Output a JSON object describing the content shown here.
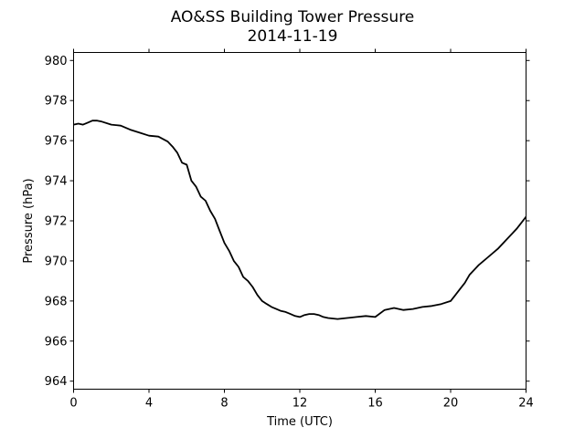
{
  "chart_data": {
    "type": "line",
    "title": "AO&SS Building Tower Pressure",
    "subtitle": "2014-11-19",
    "xlabel": "Time (UTC)",
    "ylabel": "Pressure (hPa)",
    "xlim": [
      0,
      24
    ],
    "ylim": [
      963.6,
      980.4
    ],
    "xticks": [
      0,
      4,
      8,
      12,
      16,
      20,
      24
    ],
    "yticks": [
      964,
      966,
      968,
      970,
      972,
      974,
      976,
      978,
      980
    ],
    "grid": false,
    "series": [
      {
        "color": "#000000",
        "x": [
          0,
          0.25,
          0.5,
          0.75,
          1.0,
          1.25,
          1.5,
          2.0,
          2.5,
          3.0,
          3.5,
          4.0,
          4.5,
          5.0,
          5.25,
          5.5,
          5.75,
          6.0,
          6.25,
          6.5,
          6.75,
          7.0,
          7.25,
          7.5,
          7.75,
          8.0,
          8.25,
          8.5,
          8.75,
          9.0,
          9.25,
          9.5,
          9.75,
          10.0,
          10.25,
          10.5,
          10.75,
          11.0,
          11.25,
          11.5,
          11.75,
          12.0,
          12.25,
          12.5,
          12.75,
          13.0,
          13.25,
          13.5,
          14.0,
          14.5,
          15.0,
          15.5,
          16.0,
          16.5,
          17.0,
          17.5,
          18.0,
          18.5,
          19.0,
          19.5,
          20.0,
          20.25,
          20.5,
          20.75,
          21.0,
          21.5,
          22.0,
          22.5,
          23.0,
          23.5,
          24.0
        ],
        "y": [
          976.8,
          976.85,
          976.8,
          976.9,
          977.0,
          977.0,
          976.95,
          976.8,
          976.75,
          976.55,
          976.4,
          976.25,
          976.2,
          975.95,
          975.7,
          975.4,
          974.9,
          974.8,
          974.0,
          973.7,
          973.2,
          973.0,
          972.5,
          972.1,
          971.5,
          970.9,
          970.5,
          970.0,
          969.7,
          969.2,
          969.0,
          968.7,
          968.3,
          968.0,
          967.85,
          967.7,
          967.6,
          967.5,
          967.45,
          967.35,
          967.25,
          967.2,
          967.3,
          967.35,
          967.35,
          967.3,
          967.2,
          967.15,
          967.1,
          967.15,
          967.2,
          967.25,
          967.2,
          967.55,
          967.65,
          967.55,
          967.6,
          967.7,
          967.75,
          967.85,
          968.0,
          968.3,
          968.6,
          968.9,
          969.3,
          969.8,
          970.2,
          970.6,
          971.1,
          971.6,
          972.2
        ]
      }
    ]
  }
}
